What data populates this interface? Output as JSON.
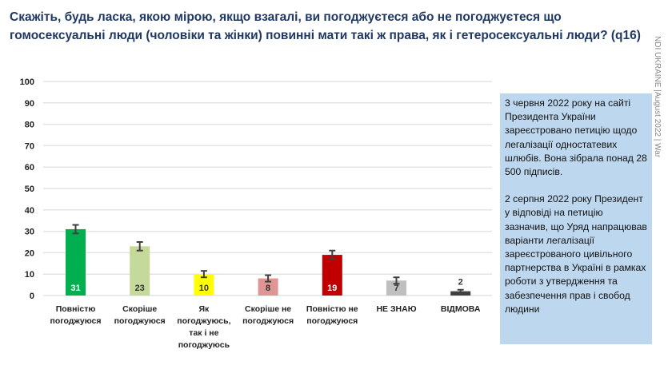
{
  "title": "Скажіть, будь ласка, якою мірою, якщо взагалі, ви погоджуєтеся або не погоджуєтеся що гомосексуальні люди (чоловіки та жінки) повинні мати такі ж права, як і гетеросексуальні люди? (q16)",
  "side_label": "NDI UKRAINE |August 2022 | War",
  "note": {
    "p1": "3 червня 2022 року на сайті Президента України зареєстровано петицію щодо легалізації одностатевих шлюбів. Вона зібрала понад 28 500 підписів.",
    "p2": "2 серпня 2022 року Президент у відповіді на петицію зазначив, що Уряд напрацював варіанти легалізації зареєстрованого цивільного партнерства в Україні в рамках роботи з утвердження та забезпечення прав і свобод людини"
  },
  "chart_data": {
    "type": "bar",
    "categories": [
      "Повністю погоджуюся",
      "Скоріше погоджуюся",
      "Як погоджуюсь, так і не погоджуюсь",
      "Скоріше не погоджуюся",
      "Повністю не погоджуюся",
      "НЕ ЗНАЮ",
      "ВІДМОВА"
    ],
    "values": [
      31,
      23,
      10,
      8,
      19,
      7,
      2
    ],
    "error": [
      2,
      2,
      1.5,
      1.5,
      2,
      1.5,
      0.7
    ],
    "colors": [
      "#00b050",
      "#c5d99b",
      "#ffff00",
      "#de9594",
      "#c00000",
      "#bfbfbf",
      "#404040"
    ],
    "label_colors": [
      "#ffffff",
      "#333333",
      "#333333",
      "#333333",
      "#ffffff",
      "#333333",
      "#333333"
    ],
    "ylim": [
      0,
      100
    ],
    "yticks": [
      0,
      10,
      20,
      30,
      40,
      50,
      60,
      70,
      80,
      90,
      100
    ],
    "grid": true
  }
}
